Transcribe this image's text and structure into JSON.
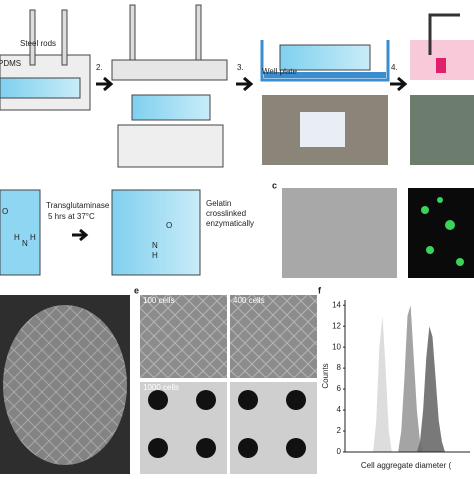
{
  "panel_a": {
    "steel_rods": "Steel rods",
    "pdms": "PDMS",
    "step_2": "2.",
    "step_3": "3.",
    "well_plate": "Well plate",
    "step_4": "4."
  },
  "panel_b": {
    "chem_left": [
      "O",
      "H",
      "N",
      "H"
    ],
    "enzyme": "Transglutaminase",
    "conditions": "5 hrs at 37°C",
    "chem_right": [
      "O",
      "N",
      "H"
    ],
    "result": [
      "Gelatin",
      "crosslinked",
      "enzymatically"
    ]
  },
  "panel_c": {
    "label": "c"
  },
  "panel_e": {
    "label": "e",
    "tiles": [
      "100 cells",
      "400 cells",
      "1000 cells"
    ]
  },
  "panel_f": {
    "label": "f"
  },
  "chart_data": {
    "type": "area",
    "ylabel": "Counts",
    "xlabel": "Cell aggregate diameter (",
    "x": [
      40,
      45,
      50,
      55,
      60,
      65,
      70,
      75,
      80,
      85,
      90,
      95,
      100,
      105,
      110,
      115,
      120,
      125,
      130,
      135,
      140,
      145,
      150,
      155,
      160,
      165,
      170
    ],
    "series": [
      {
        "color": "#d9d9d9",
        "values": [
          0,
          0,
          3,
          10,
          13,
          8,
          2,
          0,
          0,
          0,
          0,
          0,
          0,
          0,
          0,
          0,
          0,
          0,
          0,
          0,
          0,
          0,
          0,
          0,
          0,
          0,
          0
        ]
      },
      {
        "color": "#9a9a9a",
        "values": [
          0,
          0,
          0,
          0,
          0,
          0,
          0,
          0,
          0,
          0,
          2,
          7,
          13,
          14,
          9,
          4,
          1,
          0,
          0,
          0,
          0,
          0,
          0,
          0,
          0,
          0,
          0
        ]
      },
      {
        "color": "#6a6a6a",
        "values": [
          0,
          0,
          0,
          0,
          0,
          0,
          0,
          0,
          0,
          0,
          0,
          0,
          0,
          0,
          0,
          0,
          1,
          4,
          9,
          12,
          11,
          7,
          3,
          1,
          0,
          0,
          0
        ]
      }
    ],
    "xlim": [
      0,
      200
    ],
    "ylim": [
      0,
      14.5
    ],
    "yticks": [
      0,
      2,
      4,
      6,
      8,
      10,
      12,
      14
    ]
  }
}
